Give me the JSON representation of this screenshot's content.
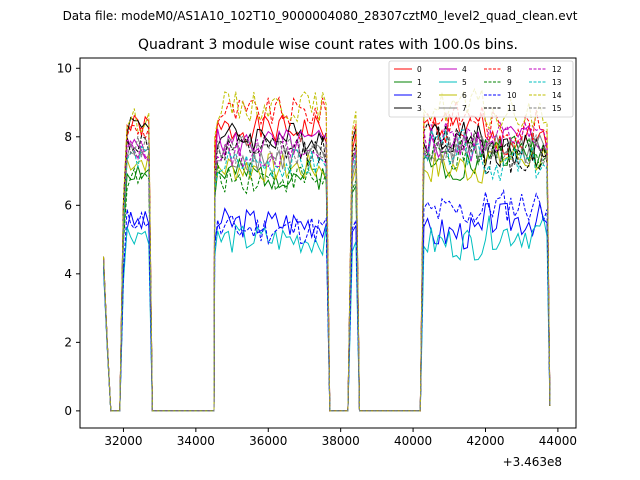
{
  "chart_data": {
    "type": "line",
    "suptitle": "Data file: modeM0/AS1A10_102T10_9000004080_28307cztM0_level2_quad_clean.evt",
    "title": "Quadrant 3 module wise count rates with 100.0s bins.",
    "xlabel": "",
    "ylabel": "",
    "x_offset_label": "+3.463e8",
    "xlim": [
      30800,
      44500
    ],
    "ylim": [
      -0.5,
      10.3
    ],
    "x_ticks": [
      32000,
      34000,
      36000,
      38000,
      40000,
      42000,
      44000
    ],
    "x_tick_labels": [
      "32000",
      "34000",
      "36000",
      "38000",
      "40000",
      "42000",
      "44000"
    ],
    "y_ticks": [
      0,
      2,
      4,
      6,
      8,
      10
    ],
    "y_tick_labels": [
      "0",
      "2",
      "4",
      "6",
      "8",
      "10"
    ],
    "legend_position": "top-right",
    "series": [
      {
        "name": "0",
        "color": "#ff0000",
        "dash": "solid",
        "levels": [
          4.5,
          8.3,
          8.2,
          8.6,
          8.0,
          8.3,
          7.8
        ]
      },
      {
        "name": "1",
        "color": "#008000",
        "dash": "solid",
        "levels": [
          4.3,
          7.0,
          6.9,
          7.2,
          6.7,
          7.2,
          7.6
        ]
      },
      {
        "name": "2",
        "color": "#0000ff",
        "dash": "solid",
        "levels": [
          4.2,
          5.5,
          5.5,
          5.8,
          5.5,
          5.2,
          5.6
        ]
      },
      {
        "name": "3",
        "color": "#000000",
        "dash": "solid",
        "levels": [
          4.5,
          8.4,
          8.0,
          8.8,
          8.3,
          8.0,
          7.6
        ]
      },
      {
        "name": "4",
        "color": "#bf00bf",
        "dash": "solid",
        "levels": [
          4.4,
          7.7,
          7.8,
          8.2,
          7.6,
          7.7,
          8.0
        ]
      },
      {
        "name": "5",
        "color": "#00bfbf",
        "dash": "solid",
        "levels": [
          4.1,
          5.2,
          5.0,
          5.1,
          4.9,
          4.9,
          5.2
        ]
      },
      {
        "name": "6",
        "color": "#bfbf00",
        "dash": "solid",
        "levels": [
          4.4,
          7.3,
          7.1,
          7.5,
          7.0,
          7.1,
          7.4
        ]
      },
      {
        "name": "7",
        "color": "#808080",
        "dash": "solid",
        "levels": [
          4.4,
          7.5,
          7.4,
          7.8,
          7.2,
          7.6,
          7.7
        ]
      },
      {
        "name": "8",
        "color": "#ff0000",
        "dash": "dashed",
        "levels": [
          4.5,
          8.2,
          8.7,
          9.0,
          8.5,
          8.6,
          8.3
        ]
      },
      {
        "name": "9",
        "color": "#008000",
        "dash": "dashed",
        "levels": [
          4.3,
          6.8,
          6.8,
          7.3,
          6.8,
          7.4,
          7.6
        ]
      },
      {
        "name": "10",
        "color": "#0000ff",
        "dash": "dashed",
        "levels": [
          4.2,
          5.6,
          5.3,
          5.8,
          5.6,
          5.8,
          6.0
        ]
      },
      {
        "name": "11",
        "color": "#000000",
        "dash": "dashed",
        "levels": [
          4.5,
          7.8,
          7.6,
          8.0,
          7.8,
          8.0,
          7.4
        ]
      },
      {
        "name": "12",
        "color": "#bf00bf",
        "dash": "dashed",
        "levels": [
          4.4,
          7.6,
          7.5,
          7.9,
          7.6,
          8.0,
          8.0
        ]
      },
      {
        "name": "13",
        "color": "#00bfbf",
        "dash": "dashed",
        "levels": [
          4.3,
          7.4,
          7.2,
          7.5,
          7.4,
          7.7,
          7.2
        ]
      },
      {
        "name": "14",
        "color": "#bfbf00",
        "dash": "dashed",
        "levels": [
          4.5,
          8.5,
          8.9,
          9.3,
          8.6,
          8.9,
          8.6
        ]
      },
      {
        "name": "15",
        "color": "#808080",
        "dash": "dashed",
        "levels": [
          4.4,
          7.7,
          7.6,
          8.0,
          7.7,
          7.7,
          7.6
        ]
      }
    ]
  }
}
